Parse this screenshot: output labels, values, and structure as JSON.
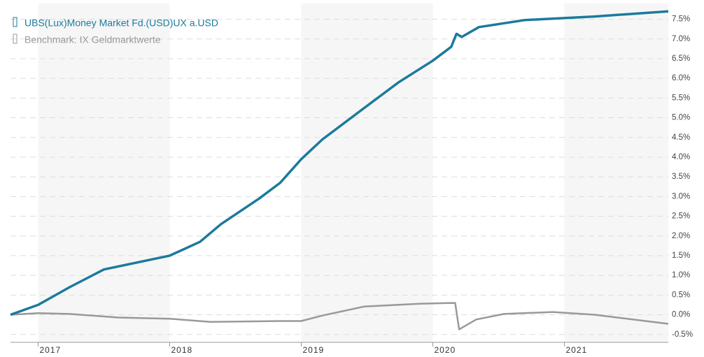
{
  "chart_data": {
    "type": "line",
    "series": [
      {
        "name": "UBS(Lux)Money Market Fd.(USD)UX a.USD",
        "color": "#1b7a9c",
        "x": [
          2016.79,
          2017.0,
          2017.24,
          2017.5,
          2018.0,
          2018.23,
          2018.39,
          2018.68,
          2018.84,
          2019.0,
          2019.16,
          2019.48,
          2019.74,
          2020.0,
          2020.14,
          2020.18,
          2020.22,
          2020.35,
          2020.7,
          2021.23,
          2021.79
        ],
        "values": [
          0,
          0.25,
          0.7,
          1.15,
          1.5,
          1.85,
          2.3,
          2.95,
          3.35,
          3.95,
          4.45,
          5.25,
          5.9,
          6.45,
          6.8,
          7.13,
          7.05,
          7.3,
          7.48,
          7.57,
          7.7
        ]
      },
      {
        "name": "Benchmark: IX Geldmarktwerte",
        "color": "#999999",
        "x": [
          2016.79,
          2017.0,
          2017.24,
          2017.61,
          2018.0,
          2018.31,
          2018.84,
          2019.0,
          2019.16,
          2019.48,
          2019.9,
          2020.17,
          2020.2,
          2020.33,
          2020.54,
          2020.91,
          2021.23,
          2021.79
        ],
        "values": [
          0,
          0.04,
          0.02,
          -0.07,
          -0.1,
          -0.18,
          -0.16,
          -0.16,
          -0.02,
          0.21,
          0.28,
          0.3,
          -0.37,
          -0.12,
          0.02,
          0.07,
          0.0,
          -0.23
        ]
      }
    ],
    "xlim": [
      2016.79,
      2021.79
    ],
    "xticks": [
      2017,
      2018,
      2019,
      2020,
      2021
    ],
    "ylim": [
      -0.7,
      7.9
    ],
    "yticks": [
      {
        "value": -0.5,
        "label": "-0.5%"
      },
      {
        "value": 0,
        "label": "0.0%"
      },
      {
        "value": 0.5,
        "label": "0.5%"
      },
      {
        "value": 1,
        "label": "1.0%"
      },
      {
        "value": 1.5,
        "label": "1.5%"
      },
      {
        "value": 2,
        "label": "2.0%"
      },
      {
        "value": 2.5,
        "label": "2.5%"
      },
      {
        "value": 3,
        "label": "3.0%"
      },
      {
        "value": 3.5,
        "label": "3.5%"
      },
      {
        "value": 4,
        "label": "4.0%"
      },
      {
        "value": 4.5,
        "label": "4.5%"
      },
      {
        "value": 5,
        "label": "5.0%"
      },
      {
        "value": 5.5,
        "label": "5.5%"
      },
      {
        "value": 6,
        "label": "6.0%"
      },
      {
        "value": 6.5,
        "label": "6.5%"
      },
      {
        "value": 7,
        "label": "7.0%"
      },
      {
        "value": 7.5,
        "label": "7.5%"
      }
    ],
    "grid": true
  }
}
